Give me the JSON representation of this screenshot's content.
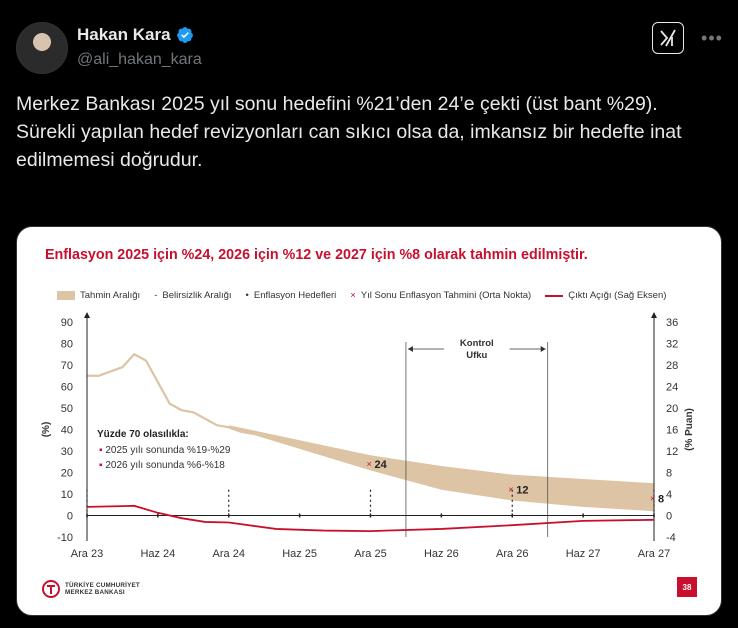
{
  "author": {
    "name": "Hakan Kara",
    "handle": "@ali_hakan_kara"
  },
  "tweet": {
    "line1": "Merkez Bankası 2025 yıl sonu hedefini %21’den 24’e çekti (üst bant %29).",
    "line2": "Sürekli yapılan hedef revizyonları can sıkıcı olsa da, imkansız bir hedefte inat edilmemesi doğrudur."
  },
  "icons": {
    "verified": "verified-badge-icon",
    "grok": "grok-icon",
    "more": "more-icon"
  },
  "colors": {
    "accent_red": "#c8102e",
    "band": "#dcc4a4",
    "verified_blue": "#1d9bf0"
  },
  "chart_data": {
    "type": "line",
    "title": "Enflasyon 2025 için %24, 2026 için %12 ve 2027 için %8 olarak tahmin edilmiştir.",
    "legend": {
      "band": "Tahmin Aralığı",
      "uncertainty": "Belirsizlik Aralığı",
      "targets": "Enflasyon Hedefleri",
      "midpoint": "Yıl Sonu Enflasyon Tahmini (Orta Nokta)",
      "output_gap": "Çıktı Açığı (Sağ Eksen)"
    },
    "x_ticks": [
      "Ara 23",
      "Haz 24",
      "Ara 24",
      "Haz 25",
      "Ara 25",
      "Haz 26",
      "Ara 26",
      "Haz 27",
      "Ara 27"
    ],
    "y_left": {
      "label": "(%)",
      "ticks": [
        "90",
        "80",
        "70",
        "60",
        "50",
        "40",
        "30",
        "20",
        "10",
        "0",
        "-10"
      ],
      "range": [
        -10,
        90
      ]
    },
    "y_right": {
      "label": "(% Puan)",
      "ticks": [
        "36",
        "32",
        "28",
        "24",
        "20",
        "16",
        "12",
        "8",
        "4",
        "0",
        "-4"
      ],
      "range": [
        -4,
        36
      ]
    },
    "control_horizon": "Kontrol\nUfku",
    "control_horizon_line1": "Kontrol",
    "control_horizon_line2": "Ufku",
    "annotation": {
      "title": "Yüzde 70 olasılıkla:",
      "items": [
        "2025 yılı sonunda %19-%29",
        "2026 yılı sonunda %6-%18"
      ]
    },
    "midpoints": [
      {
        "x": 24,
        "y": 24,
        "label": "24"
      },
      {
        "x": 36,
        "y": 12,
        "label": "12"
      },
      {
        "x": 48,
        "y": 8,
        "label": "8"
      }
    ],
    "inflation_actual": {
      "x": [
        0,
        1,
        2,
        3,
        4,
        5,
        6,
        7,
        8,
        9,
        10,
        11,
        12,
        13,
        14
      ],
      "y": [
        65,
        65,
        67,
        69,
        75,
        72,
        62,
        52,
        49,
        48,
        45,
        42,
        41,
        39,
        38
      ]
    },
    "band_upper": {
      "x": [
        12,
        18,
        24,
        30,
        36,
        42,
        48
      ],
      "y": [
        42,
        35,
        28,
        23,
        19,
        17,
        15
      ]
    },
    "band_lower": {
      "x": [
        12,
        18,
        24,
        30,
        36,
        42,
        48
      ],
      "y": [
        41,
        31,
        21,
        12,
        7,
        4,
        2
      ]
    },
    "output_gap": {
      "x": [
        0,
        4,
        6,
        8,
        10,
        12,
        16,
        20,
        24,
        30,
        36,
        42,
        48
      ],
      "y": [
        1.6,
        1.8,
        0.5,
        -0.5,
        -1.2,
        -1.3,
        -2.5,
        -2.8,
        -2.9,
        -2.5,
        -1.8,
        -1,
        -0.8
      ]
    },
    "page_number": "38",
    "bank_name_line1": "TÜRKİYE CUMHURİYET",
    "bank_name_line2": "MERKEZ BANKASI"
  }
}
